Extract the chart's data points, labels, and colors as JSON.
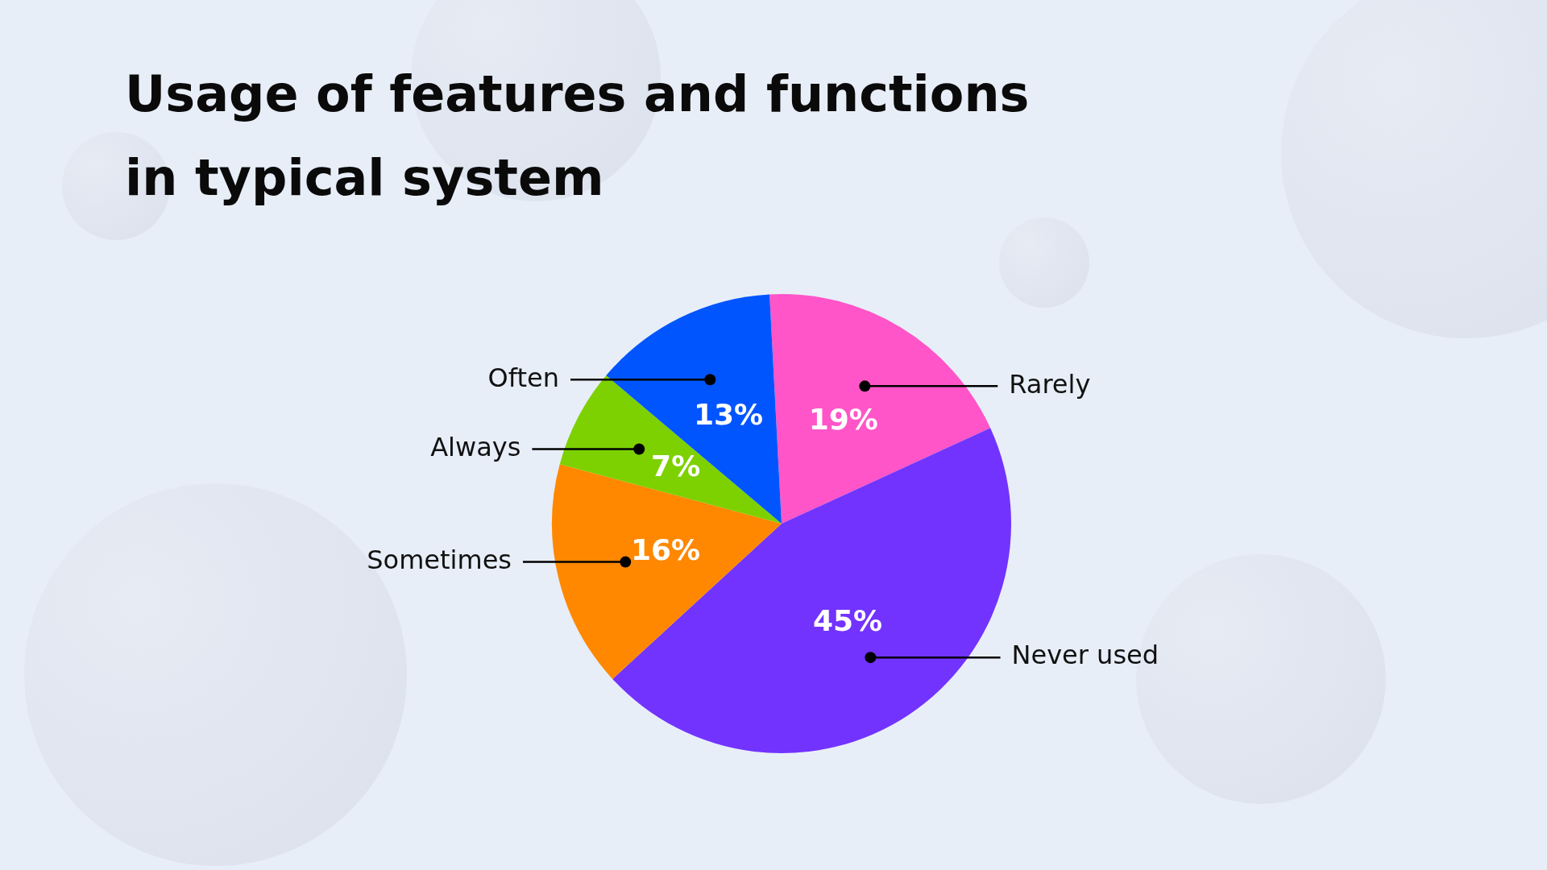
{
  "chart_data": {
    "type": "pie",
    "title": "Usage of features and functions in typical system",
    "categories": [
      "Rarely",
      "Never used",
      "Sometimes",
      "Always",
      "Often"
    ],
    "values": [
      19,
      45,
      16,
      7,
      13
    ],
    "value_labels": [
      "19%",
      "45%",
      "16%",
      "7%",
      "13%"
    ],
    "colors": [
      "#ff55c8",
      "#7233ff",
      "#ff8800",
      "#7dd100",
      "#0055ff"
    ],
    "legend": false
  }
}
